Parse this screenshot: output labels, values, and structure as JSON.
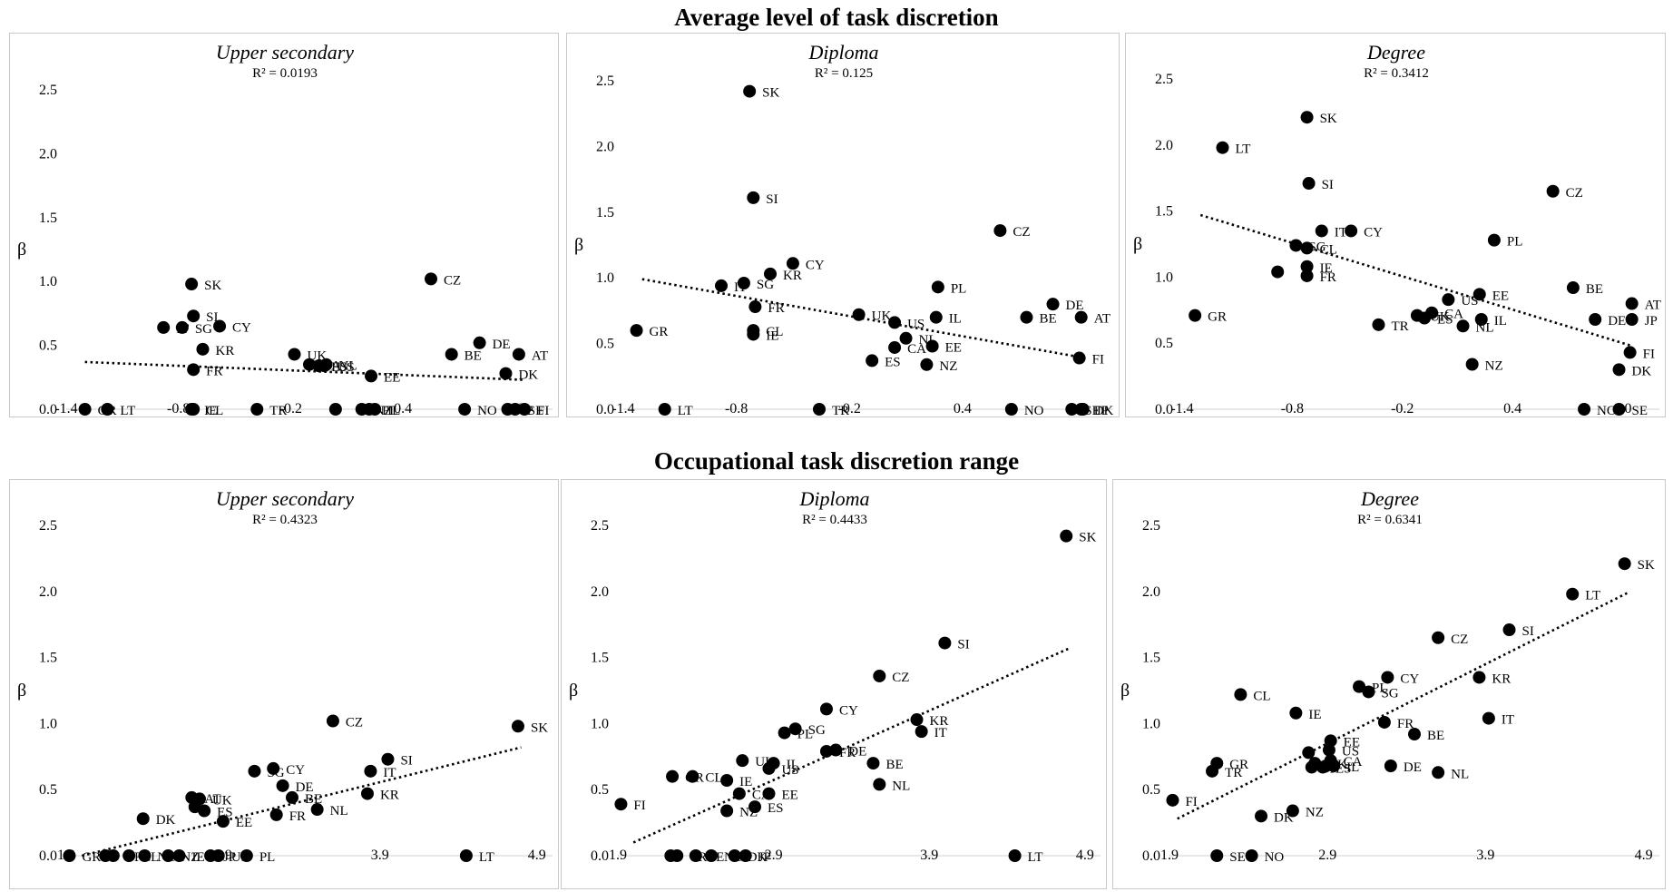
{
  "row_titles": [
    "Average level of task discretion",
    "Occupational task discretion range"
  ],
  "chart_data": [
    {
      "type": "scatter",
      "title": "Upper secondary",
      "annotation": "R² = 0.0193",
      "ylabel": "β",
      "xlim": [
        -1.4,
        1.2
      ],
      "ylim": [
        0,
        2.5
      ],
      "xticks": [
        "-1.4",
        "-0.8",
        "-0.2",
        "0.4",
        "1.0"
      ],
      "yticks": [
        "0.0",
        "0.5",
        "1.0",
        "1.5",
        "2.0",
        "2.5"
      ],
      "trend": [
        [
          -1.3,
          0.37
        ],
        [
          1.05,
          0.23
        ]
      ],
      "points": [
        {
          "label": "SK",
          "x": -0.73,
          "y": 0.98
        },
        {
          "label": "CZ",
          "x": 0.55,
          "y": 1.02
        },
        {
          "label": "SI",
          "x": -0.72,
          "y": 0.73
        },
        {
          "label": "CY",
          "x": -0.58,
          "y": 0.65
        },
        {
          "label": "SG",
          "x": -0.78,
          "y": 0.64
        },
        {
          "label": "IT",
          "x": -0.88,
          "y": 0.64
        },
        {
          "label": "KR",
          "x": -0.67,
          "y": 0.47
        },
        {
          "label": "FR",
          "x": -0.72,
          "y": 0.31
        },
        {
          "label": "UK",
          "x": -0.18,
          "y": 0.43
        },
        {
          "label": "NL",
          "x": -0.01,
          "y": 0.35
        },
        {
          "label": "ES",
          "x": -0.05,
          "y": 0.34
        },
        {
          "label": "CA",
          "x": -0.1,
          "y": 0.35
        },
        {
          "label": "US",
          "x": -0.02,
          "y": 0.34
        },
        {
          "label": "EE",
          "x": 0.23,
          "y": 0.26
        },
        {
          "label": "BE",
          "x": 0.66,
          "y": 0.43
        },
        {
          "label": "DE",
          "x": 0.81,
          "y": 0.52
        },
        {
          "label": "AT",
          "x": 1.02,
          "y": 0.43
        },
        {
          "label": "DK",
          "x": 0.95,
          "y": 0.28
        },
        {
          "label": "GR",
          "x": -1.3,
          "y": 0.0
        },
        {
          "label": "LT",
          "x": -1.18,
          "y": 0.0
        },
        {
          "label": "IE",
          "x": -0.73,
          "y": 0.0
        },
        {
          "label": "CL",
          "x": -0.72,
          "y": 0.0
        },
        {
          "label": "TR",
          "x": -0.38,
          "y": 0.0
        },
        {
          "label": "NZ",
          "x": 0.18,
          "y": 0.0
        },
        {
          "label": "PL",
          "x": 0.22,
          "y": 0.0
        },
        {
          "label": "IL",
          "x": 0.25,
          "y": 0.0
        },
        {
          "label": "NO",
          "x": 0.73,
          "y": 0.0
        },
        {
          "label": "JP",
          "x": 0.96,
          "y": 0.0
        },
        {
          "label": "SE",
          "x": 1.0,
          "y": 0.0
        },
        {
          "label": "FI",
          "x": 1.05,
          "y": 0.0
        },
        {
          "label": "",
          "x": 0.04,
          "y": 0.0
        }
      ]
    },
    {
      "type": "scatter",
      "title": "Diploma",
      "annotation": "R² = 0.125",
      "ylabel": "β",
      "xlim": [
        -1.4,
        1.2
      ],
      "ylim": [
        0,
        2.5
      ],
      "xticks": [
        "-1.4",
        "-0.8",
        "-0.2",
        "0.4",
        "1.0"
      ],
      "yticks": [
        "0.0",
        "0.5",
        "1.0",
        "1.5",
        "2.0",
        "2.5"
      ],
      "trend": [
        [
          -1.3,
          0.99
        ],
        [
          1.05,
          0.39
        ]
      ],
      "points": [
        {
          "label": "SK",
          "x": -0.73,
          "y": 2.42
        },
        {
          "label": "SI",
          "x": -0.71,
          "y": 1.61
        },
        {
          "label": "CZ",
          "x": 0.6,
          "y": 1.36
        },
        {
          "label": "CY",
          "x": -0.5,
          "y": 1.11
        },
        {
          "label": "KR",
          "x": -0.62,
          "y": 1.03
        },
        {
          "label": "IT",
          "x": -0.88,
          "y": 0.94
        },
        {
          "label": "SG",
          "x": -0.76,
          "y": 0.96
        },
        {
          "label": "FR",
          "x": -0.7,
          "y": 0.78
        },
        {
          "label": "PL",
          "x": 0.27,
          "y": 0.93
        },
        {
          "label": "DE",
          "x": 0.88,
          "y": 0.8
        },
        {
          "label": "BE",
          "x": 0.74,
          "y": 0.7
        },
        {
          "label": "AT",
          "x": 1.03,
          "y": 0.7
        },
        {
          "label": "UK",
          "x": -0.15,
          "y": 0.72
        },
        {
          "label": "US",
          "x": 0.04,
          "y": 0.66
        },
        {
          "label": "IL",
          "x": 0.26,
          "y": 0.7
        },
        {
          "label": "NL",
          "x": 0.1,
          "y": 0.54
        },
        {
          "label": "CA",
          "x": 0.04,
          "y": 0.47
        },
        {
          "label": "EE",
          "x": 0.24,
          "y": 0.48
        },
        {
          "label": "ES",
          "x": -0.08,
          "y": 0.37
        },
        {
          "label": "NZ",
          "x": 0.21,
          "y": 0.34
        },
        {
          "label": "FI",
          "x": 1.02,
          "y": 0.39
        },
        {
          "label": "GR",
          "x": -1.33,
          "y": 0.6
        },
        {
          "label": "CL",
          "x": -0.71,
          "y": 0.6
        },
        {
          "label": "IE",
          "x": -0.71,
          "y": 0.57
        },
        {
          "label": "LT",
          "x": -1.18,
          "y": 0.0
        },
        {
          "label": "TR",
          "x": -0.36,
          "y": 0.0
        },
        {
          "label": "NO",
          "x": 0.66,
          "y": 0.0
        },
        {
          "label": "SE",
          "x": 0.98,
          "y": 0.0
        },
        {
          "label": "DK",
          "x": 1.03,
          "y": 0.0
        },
        {
          "label": "JP",
          "x": 1.04,
          "y": 0.0
        }
      ]
    },
    {
      "type": "scatter",
      "title": "Degree",
      "annotation": "R² = 0.3412",
      "ylabel": "β",
      "xlim": [
        -1.4,
        1.2
      ],
      "ylim": [
        0,
        2.5
      ],
      "xticks": [
        "-1.4",
        "-0.8",
        "-0.2",
        "0.4",
        "1.0"
      ],
      "yticks": [
        "0.0",
        "0.5",
        "1.0",
        "1.5",
        "2.0",
        "2.5"
      ],
      "trend": [
        [
          -1.3,
          1.47
        ],
        [
          1.05,
          0.48
        ]
      ],
      "points": [
        {
          "label": "SK",
          "x": -0.72,
          "y": 2.21
        },
        {
          "label": "LT",
          "x": -1.18,
          "y": 1.98
        },
        {
          "label": "SI",
          "x": -0.71,
          "y": 1.71
        },
        {
          "label": "CZ",
          "x": 0.62,
          "y": 1.65
        },
        {
          "label": "IT",
          "x": -0.64,
          "y": 1.35
        },
        {
          "label": "CY",
          "x": -0.48,
          "y": 1.35
        },
        {
          "label": "PL",
          "x": 0.3,
          "y": 1.28
        },
        {
          "label": "SG",
          "x": -0.78,
          "y": 1.24
        },
        {
          "label": "CL",
          "x": -0.72,
          "y": 1.22
        },
        {
          "label": "IE",
          "x": -0.72,
          "y": 1.08
        },
        {
          "label": "FR",
          "x": -0.72,
          "y": 1.01
        },
        {
          "label": "",
          "x": -0.88,
          "y": 1.04
        },
        {
          "label": "BE",
          "x": 0.73,
          "y": 0.92
        },
        {
          "label": "EE",
          "x": 0.22,
          "y": 0.87
        },
        {
          "label": "US",
          "x": 0.05,
          "y": 0.83
        },
        {
          "label": "UK",
          "x": -0.12,
          "y": 0.71
        },
        {
          "label": "CA",
          "x": -0.04,
          "y": 0.73
        },
        {
          "label": "ES",
          "x": -0.08,
          "y": 0.69
        },
        {
          "label": "IL",
          "x": 0.23,
          "y": 0.68
        },
        {
          "label": "NL",
          "x": 0.13,
          "y": 0.63
        },
        {
          "label": "TR",
          "x": -0.33,
          "y": 0.64
        },
        {
          "label": "AT",
          "x": 1.05,
          "y": 0.8
        },
        {
          "label": "DE",
          "x": 0.85,
          "y": 0.68
        },
        {
          "label": "JP",
          "x": 1.05,
          "y": 0.68
        },
        {
          "label": "FI",
          "x": 1.04,
          "y": 0.43
        },
        {
          "label": "DK",
          "x": 0.98,
          "y": 0.3
        },
        {
          "label": "NZ",
          "x": 0.18,
          "y": 0.34
        },
        {
          "label": "GR",
          "x": -1.33,
          "y": 0.71
        },
        {
          "label": "NO",
          "x": 0.79,
          "y": 0.0
        },
        {
          "label": "SE",
          "x": 0.98,
          "y": 0.0
        }
      ]
    },
    {
      "type": "scatter",
      "title": "Upper secondary",
      "annotation": "R² = 0.4323",
      "ylabel": "β",
      "xlim": [
        1.9,
        5.0
      ],
      "ylim": [
        0,
        2.5
      ],
      "xticks": [
        "1.9",
        "2.9",
        "3.9",
        "4.9"
      ],
      "yticks": [
        "0.0",
        "0.5",
        "1.0",
        "1.5",
        "2.0",
        "2.5"
      ],
      "trend": [
        [
          2.0,
          0.0
        ],
        [
          4.8,
          0.82
        ]
      ],
      "points": [
        {
          "label": "SK",
          "x": 4.78,
          "y": 0.98
        },
        {
          "label": "CZ",
          "x": 3.6,
          "y": 1.02
        },
        {
          "label": "SI",
          "x": 3.95,
          "y": 0.73
        },
        {
          "label": "IT",
          "x": 3.84,
          "y": 0.64
        },
        {
          "label": "KR",
          "x": 3.82,
          "y": 0.47
        },
        {
          "label": "NL",
          "x": 3.5,
          "y": 0.35
        },
        {
          "label": "BE",
          "x": 3.34,
          "y": 0.44
        },
        {
          "label": "DE",
          "x": 3.28,
          "y": 0.53
        },
        {
          "label": "CY",
          "x": 3.22,
          "y": 0.66
        },
        {
          "label": "SG",
          "x": 3.1,
          "y": 0.64
        },
        {
          "label": "FR",
          "x": 3.24,
          "y": 0.31
        },
        {
          "label": "EE",
          "x": 2.9,
          "y": 0.26
        },
        {
          "label": "ES",
          "x": 2.78,
          "y": 0.34
        },
        {
          "label": "UK",
          "x": 2.75,
          "y": 0.43
        },
        {
          "label": "AT",
          "x": 2.7,
          "y": 0.44
        },
        {
          "label": "DK",
          "x": 2.39,
          "y": 0.28
        },
        {
          "label": "",
          "x": 2.72,
          "y": 0.37
        },
        {
          "label": "GR",
          "x": 1.92,
          "y": 0.0
        },
        {
          "label": "",
          "x": 2.15,
          "y": 0.0
        },
        {
          "label": "TR",
          "x": 2.2,
          "y": 0.0
        },
        {
          "label": "CL",
          "x": 2.3,
          "y": 0.0
        },
        {
          "label": "NO",
          "x": 2.4,
          "y": 0.0
        },
        {
          "label": "NZ",
          "x": 2.55,
          "y": 0.0
        },
        {
          "label": "IE",
          "x": 2.62,
          "y": 0.0
        },
        {
          "label": "JP",
          "x": 2.82,
          "y": 0.0
        },
        {
          "label": "US",
          "x": 2.87,
          "y": 0.0
        },
        {
          "label": "PL",
          "x": 3.05,
          "y": 0.0
        },
        {
          "label": "LT",
          "x": 4.45,
          "y": 0.0
        }
      ]
    },
    {
      "type": "scatter",
      "title": "Diploma",
      "annotation": "R² = 0.4433",
      "ylabel": "β",
      "xlim": [
        1.9,
        5.0
      ],
      "ylim": [
        0,
        2.5
      ],
      "xticks": [
        "1.9",
        "2.9",
        "3.9",
        "4.9"
      ],
      "yticks": [
        "0.0",
        "0.5",
        "1.0",
        "1.5",
        "2.0",
        "2.5"
      ],
      "trend": [
        [
          2.0,
          0.1
        ],
        [
          4.8,
          1.57
        ]
      ],
      "points": [
        {
          "label": "SK",
          "x": 4.78,
          "y": 2.42
        },
        {
          "label": "SI",
          "x": 4.0,
          "y": 1.61
        },
        {
          "label": "CZ",
          "x": 3.58,
          "y": 1.36
        },
        {
          "label": "CY",
          "x": 3.24,
          "y": 1.11
        },
        {
          "label": "KR",
          "x": 3.82,
          "y": 1.03
        },
        {
          "label": "IT",
          "x": 3.85,
          "y": 0.94
        },
        {
          "label": "SG",
          "x": 3.04,
          "y": 0.96
        },
        {
          "label": "PL",
          "x": 2.97,
          "y": 0.93
        },
        {
          "label": "FR",
          "x": 3.24,
          "y": 0.79
        },
        {
          "label": "DE",
          "x": 3.3,
          "y": 0.8
        },
        {
          "label": "BE",
          "x": 3.54,
          "y": 0.7
        },
        {
          "label": "NL",
          "x": 3.58,
          "y": 0.54
        },
        {
          "label": "UK",
          "x": 2.7,
          "y": 0.72
        },
        {
          "label": "IL",
          "x": 2.9,
          "y": 0.7
        },
        {
          "label": "US",
          "x": 2.87,
          "y": 0.66
        },
        {
          "label": "CA",
          "x": 2.68,
          "y": 0.47
        },
        {
          "label": "EE",
          "x": 2.87,
          "y": 0.47
        },
        {
          "label": "IE",
          "x": 2.6,
          "y": 0.57
        },
        {
          "label": "NZ",
          "x": 2.6,
          "y": 0.34
        },
        {
          "label": "ES",
          "x": 2.78,
          "y": 0.37
        },
        {
          "label": "GR",
          "x": 2.25,
          "y": 0.6
        },
        {
          "label": "CL",
          "x": 2.38,
          "y": 0.6
        },
        {
          "label": "FI",
          "x": 1.92,
          "y": 0.39
        },
        {
          "label": "TR",
          "x": 2.28,
          "y": 0.0
        },
        {
          "label": "SE",
          "x": 2.4,
          "y": 0.0
        },
        {
          "label": "NO",
          "x": 2.5,
          "y": 0.0
        },
        {
          "label": "DK",
          "x": 2.65,
          "y": 0.0
        },
        {
          "label": "JP",
          "x": 2.72,
          "y": 0.0
        },
        {
          "label": "LT",
          "x": 4.45,
          "y": 0.0
        },
        {
          "label": "",
          "x": 2.24,
          "y": 0.0
        }
      ]
    },
    {
      "type": "scatter",
      "title": "Degree",
      "annotation": "R² = 0.6341",
      "ylabel": "β",
      "xlim": [
        1.9,
        5.0
      ],
      "ylim": [
        0,
        2.5
      ],
      "xticks": [
        "1.9",
        "2.9",
        "3.9",
        "4.9"
      ],
      "yticks": [
        "0.0",
        "0.5",
        "1.0",
        "1.5",
        "2.0",
        "2.5"
      ],
      "trend": [
        [
          1.95,
          0.28
        ],
        [
          4.8,
          1.99
        ]
      ],
      "points": [
        {
          "label": "SK",
          "x": 4.78,
          "y": 2.21
        },
        {
          "label": "LT",
          "x": 4.45,
          "y": 1.98
        },
        {
          "label": "SI",
          "x": 4.05,
          "y": 1.71
        },
        {
          "label": "CZ",
          "x": 3.6,
          "y": 1.65
        },
        {
          "label": "KR",
          "x": 3.86,
          "y": 1.35
        },
        {
          "label": "CY",
          "x": 3.28,
          "y": 1.35
        },
        {
          "label": "PL",
          "x": 3.1,
          "y": 1.28
        },
        {
          "label": "SG",
          "x": 3.16,
          "y": 1.24
        },
        {
          "label": "IT",
          "x": 3.92,
          "y": 1.04
        },
        {
          "label": "FR",
          "x": 3.26,
          "y": 1.01
        },
        {
          "label": "BE",
          "x": 3.45,
          "y": 0.92
        },
        {
          "label": "CL",
          "x": 2.35,
          "y": 1.22
        },
        {
          "label": "IE",
          "x": 2.7,
          "y": 1.08
        },
        {
          "label": "EE",
          "x": 2.92,
          "y": 0.87
        },
        {
          "label": "US",
          "x": 2.91,
          "y": 0.8
        },
        {
          "label": "DE",
          "x": 3.3,
          "y": 0.68
        },
        {
          "label": "NL",
          "x": 3.6,
          "y": 0.63
        },
        {
          "label": "UK",
          "x": 2.82,
          "y": 0.7
        },
        {
          "label": "IL",
          "x": 2.94,
          "y": 0.68
        },
        {
          "label": "JP",
          "x": 2.8,
          "y": 0.67
        },
        {
          "label": "ES",
          "x": 2.87,
          "y": 0.67
        },
        {
          "label": "CA",
          "x": 2.92,
          "y": 0.72
        },
        {
          "label": "",
          "x": 2.78,
          "y": 0.78
        },
        {
          "label": "",
          "x": 2.89,
          "y": 0.68
        },
        {
          "label": "GR",
          "x": 2.2,
          "y": 0.7
        },
        {
          "label": "TR",
          "x": 2.17,
          "y": 0.64
        },
        {
          "label": "FI",
          "x": 1.92,
          "y": 0.42
        },
        {
          "label": "DK",
          "x": 2.48,
          "y": 0.3
        },
        {
          "label": "NZ",
          "x": 2.68,
          "y": 0.34
        },
        {
          "label": "SE",
          "x": 2.2,
          "y": 0.0
        },
        {
          "label": "NO",
          "x": 2.42,
          "y": 0.0
        }
      ]
    }
  ]
}
